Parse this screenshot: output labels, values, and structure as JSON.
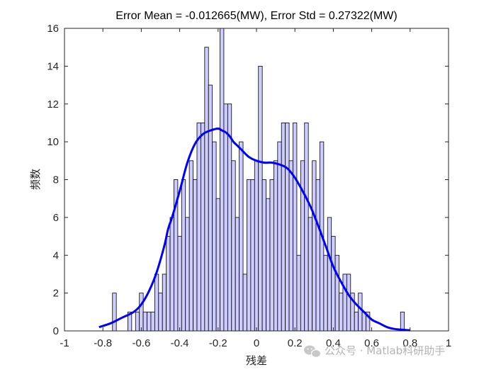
{
  "chart_data": {
    "type": "bar",
    "title": "Error Mean = -0.012665(MW), Error Std = 0.27322(MW)",
    "xlabel": "残差",
    "ylabel": "频数",
    "xlim": [
      -1,
      1
    ],
    "ylim": [
      0,
      16
    ],
    "xticks": [
      "-1",
      "-0.8",
      "-0.6",
      "-0.4",
      "-0.2",
      "0",
      "0.2",
      "0.4",
      "0.6",
      "0.8",
      "1"
    ],
    "yticks": [
      "0",
      "2",
      "4",
      "6",
      "8",
      "10",
      "12",
      "14",
      "16"
    ],
    "bin_width": 0.02,
    "bins": [
      {
        "x": -0.74,
        "count": 2
      },
      {
        "x": -0.66,
        "count": 1
      },
      {
        "x": -0.62,
        "count": 1
      },
      {
        "x": -0.6,
        "count": 2
      },
      {
        "x": -0.58,
        "count": 1
      },
      {
        "x": -0.56,
        "count": 1
      },
      {
        "x": -0.54,
        "count": 1
      },
      {
        "x": -0.52,
        "count": 3
      },
      {
        "x": -0.5,
        "count": 2
      },
      {
        "x": -0.48,
        "count": 3
      },
      {
        "x": -0.46,
        "count": 5
      },
      {
        "x": -0.44,
        "count": 6
      },
      {
        "x": -0.42,
        "count": 8
      },
      {
        "x": -0.4,
        "count": 5
      },
      {
        "x": -0.38,
        "count": 8
      },
      {
        "x": -0.36,
        "count": 6
      },
      {
        "x": -0.34,
        "count": 9
      },
      {
        "x": -0.32,
        "count": 8
      },
      {
        "x": -0.3,
        "count": 11
      },
      {
        "x": -0.28,
        "count": 11
      },
      {
        "x": -0.26,
        "count": 15
      },
      {
        "x": -0.24,
        "count": 13
      },
      {
        "x": -0.22,
        "count": 10
      },
      {
        "x": -0.2,
        "count": 7
      },
      {
        "x": -0.18,
        "count": 16
      },
      {
        "x": -0.16,
        "count": 12
      },
      {
        "x": -0.14,
        "count": 12
      },
      {
        "x": -0.12,
        "count": 9
      },
      {
        "x": -0.1,
        "count": 6
      },
      {
        "x": -0.08,
        "count": 10
      },
      {
        "x": -0.06,
        "count": 3
      },
      {
        "x": -0.04,
        "count": 8
      },
      {
        "x": -0.02,
        "count": 8
      },
      {
        "x": 0.0,
        "count": 9
      },
      {
        "x": 0.02,
        "count": 14
      },
      {
        "x": 0.04,
        "count": 8
      },
      {
        "x": 0.06,
        "count": 7
      },
      {
        "x": 0.08,
        "count": 8
      },
      {
        "x": 0.1,
        "count": 9
      },
      {
        "x": 0.12,
        "count": 10
      },
      {
        "x": 0.14,
        "count": 11
      },
      {
        "x": 0.16,
        "count": 11
      },
      {
        "x": 0.18,
        "count": 9
      },
      {
        "x": 0.2,
        "count": 11
      },
      {
        "x": 0.22,
        "count": 4
      },
      {
        "x": 0.24,
        "count": 9
      },
      {
        "x": 0.26,
        "count": 11
      },
      {
        "x": 0.28,
        "count": 6
      },
      {
        "x": 0.3,
        "count": 9
      },
      {
        "x": 0.32,
        "count": 8
      },
      {
        "x": 0.34,
        "count": 10
      },
      {
        "x": 0.36,
        "count": 4
      },
      {
        "x": 0.38,
        "count": 6
      },
      {
        "x": 0.4,
        "count": 5
      },
      {
        "x": 0.42,
        "count": 4
      },
      {
        "x": 0.44,
        "count": 2
      },
      {
        "x": 0.46,
        "count": 3
      },
      {
        "x": 0.48,
        "count": 3
      },
      {
        "x": 0.5,
        "count": 2
      },
      {
        "x": 0.52,
        "count": 1
      },
      {
        "x": 0.54,
        "count": 2
      },
      {
        "x": 0.56,
        "count": 1
      },
      {
        "x": 0.58,
        "count": 1
      },
      {
        "x": 0.76,
        "count": 1
      }
    ],
    "density_curve": {
      "x": [
        -0.82,
        -0.76,
        -0.7,
        -0.64,
        -0.6,
        -0.56,
        -0.52,
        -0.48,
        -0.46,
        -0.44,
        -0.4,
        -0.36,
        -0.32,
        -0.28,
        -0.24,
        -0.2,
        -0.18,
        -0.16,
        -0.14,
        -0.12,
        -0.1,
        -0.08,
        -0.04,
        0.0,
        0.04,
        0.08,
        0.12,
        0.16,
        0.2,
        0.24,
        0.28,
        0.32,
        0.36,
        0.4,
        0.44,
        0.48,
        0.52,
        0.56,
        0.6,
        0.64,
        0.68,
        0.72,
        0.76,
        0.8
      ],
      "y": [
        0.2,
        0.4,
        0.7,
        1.0,
        1.4,
        2.1,
        3.1,
        4.5,
        5.4,
        6.0,
        7.4,
        8.9,
        9.9,
        10.4,
        10.6,
        10.7,
        10.6,
        10.5,
        10.3,
        10.0,
        9.8,
        9.6,
        9.2,
        9.0,
        8.9,
        8.9,
        8.8,
        8.6,
        8.1,
        7.4,
        6.6,
        5.6,
        4.5,
        3.4,
        2.6,
        1.9,
        1.4,
        1.0,
        0.6,
        0.4,
        0.2,
        0.1,
        0.06,
        0.03
      ]
    },
    "colors": {
      "bar_fill": "#ccccff",
      "bar_edge": "#000000",
      "curve": "#0000ff"
    },
    "grid": false,
    "legend": "none"
  },
  "watermark": {
    "icon": "wechat-icon",
    "text": "公众号 · Matlab科研助手"
  }
}
